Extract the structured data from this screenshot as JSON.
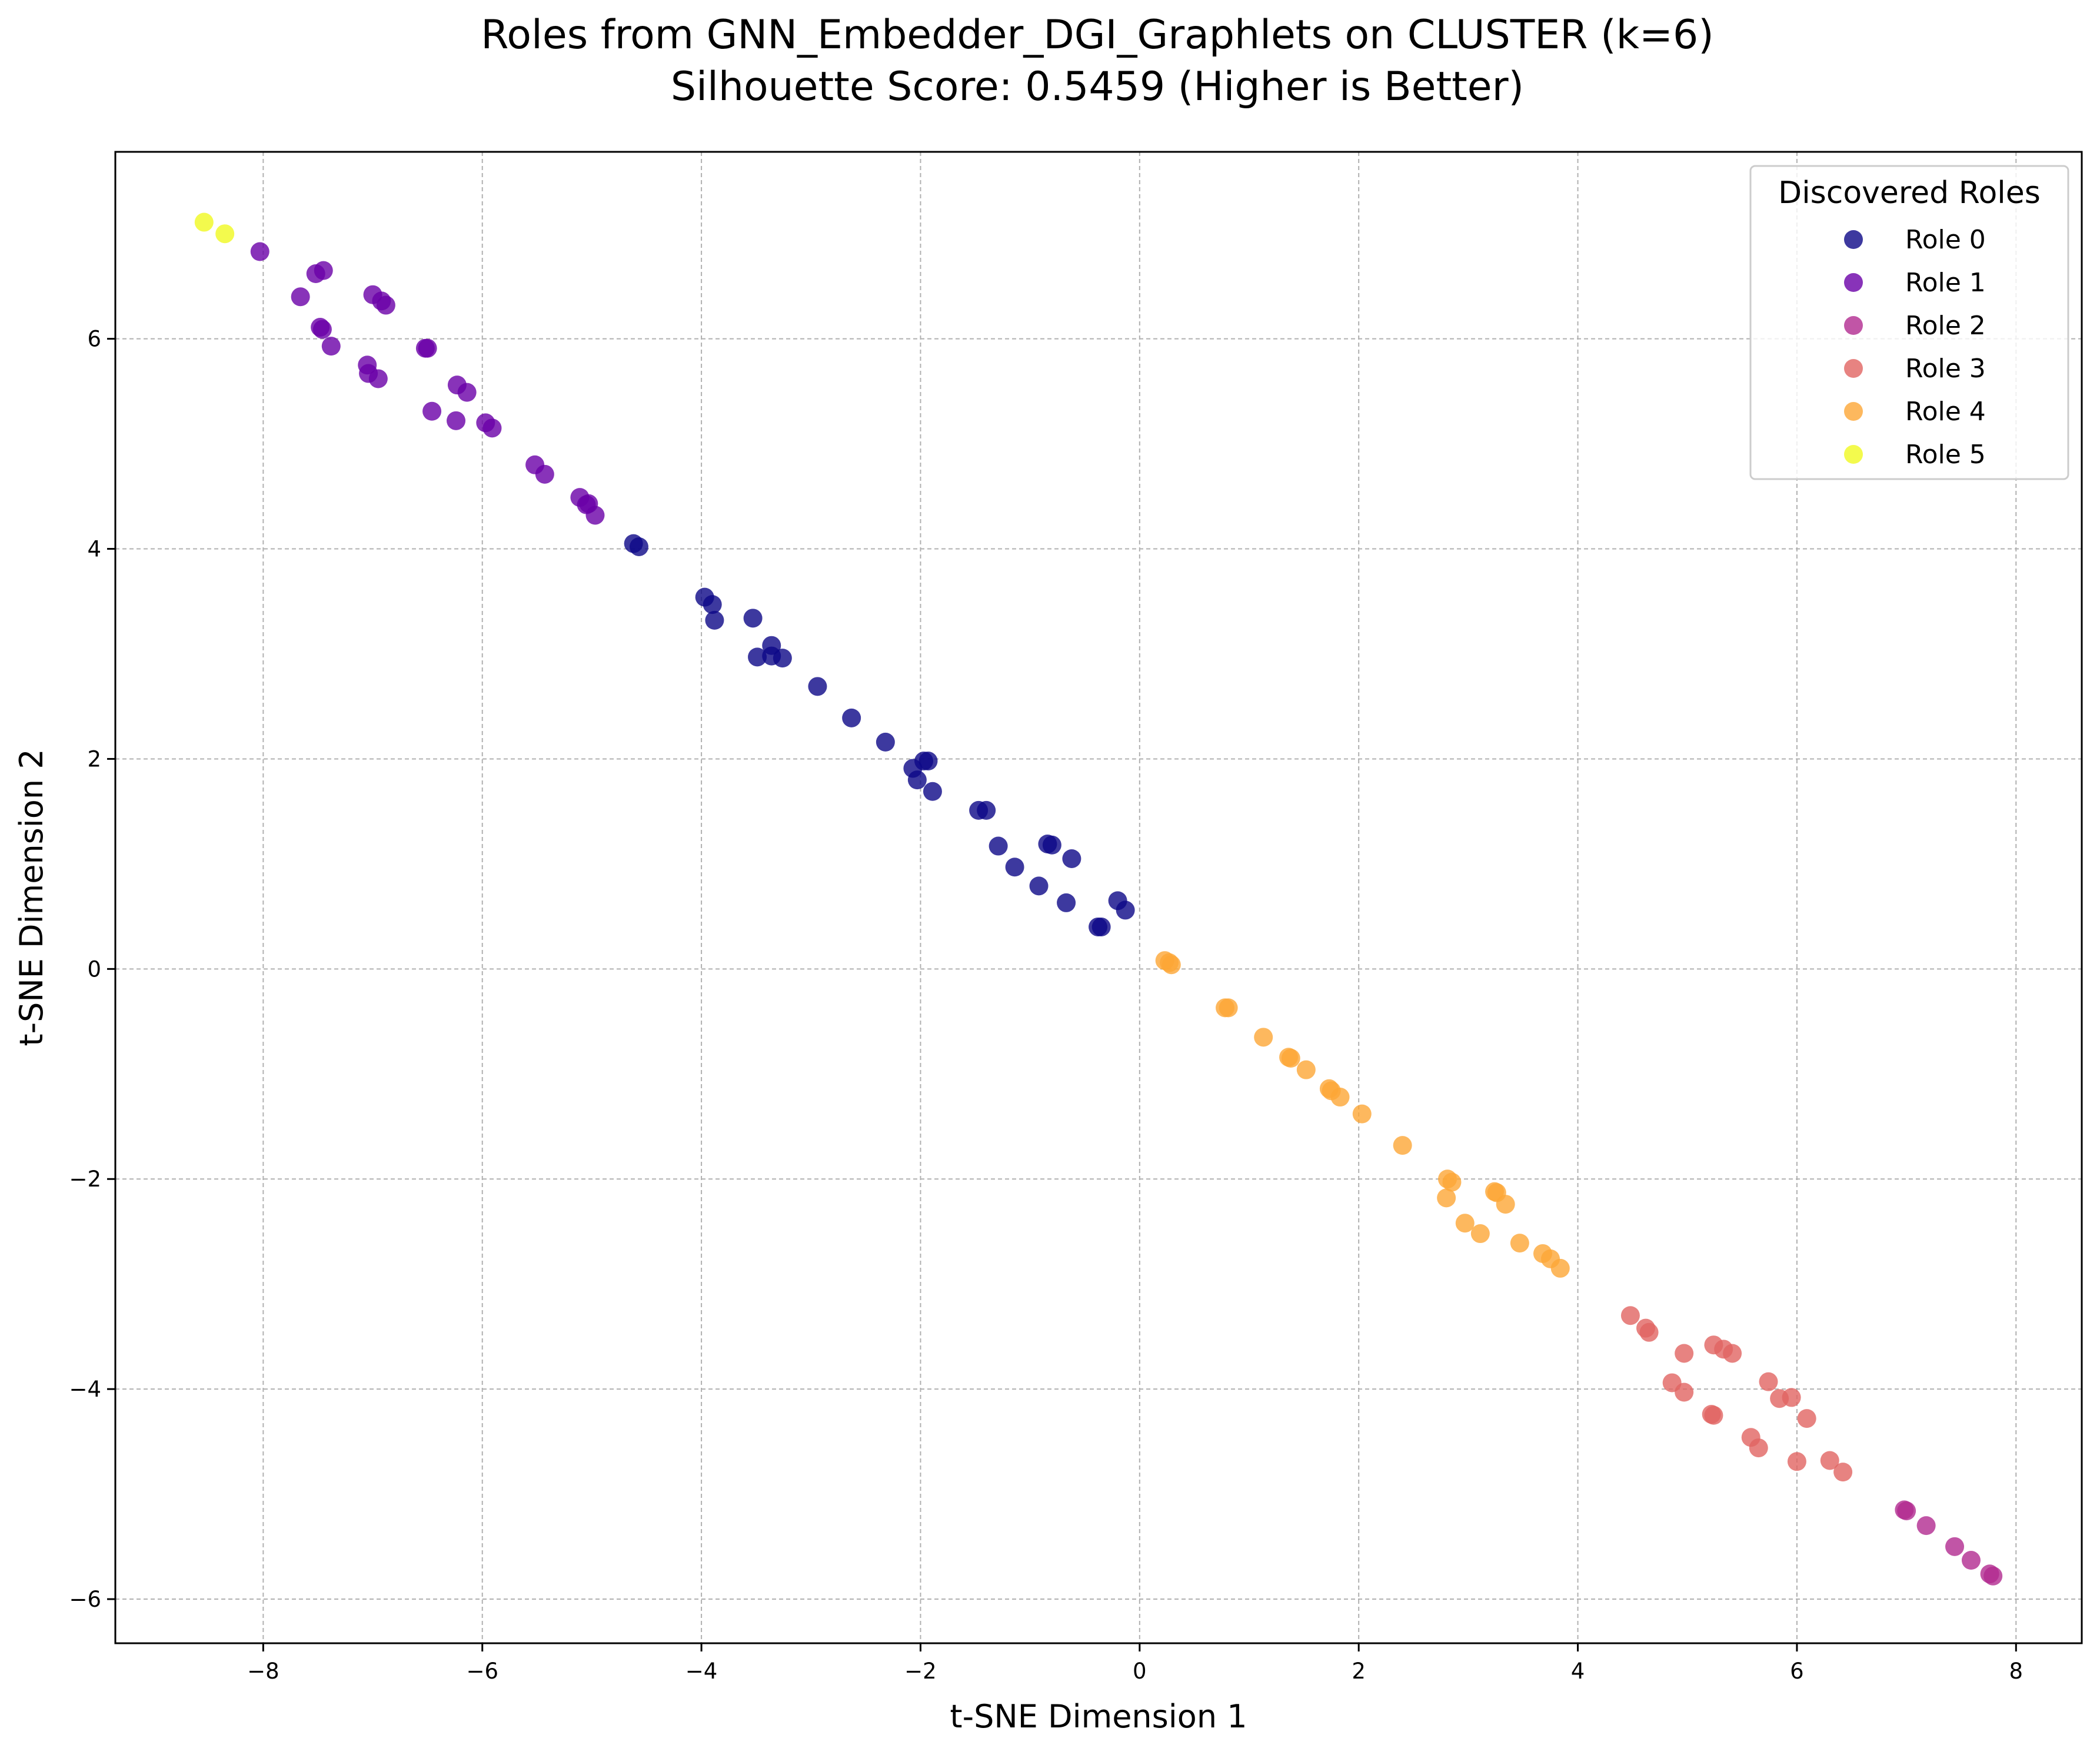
{
  "chart_data": {
    "type": "scatter",
    "title": "Roles from GNN_Embedder_DGI_Graphlets on CLUSTER (k=6)",
    "subtitle": "Silhouette Score: 0.5459 (Higher is Better)",
    "xlabel": "t-SNE Dimension 1",
    "ylabel": "t-SNE Dimension 2",
    "xlim": [
      -9.35,
      8.6
    ],
    "ylim": [
      -6.42,
      7.78
    ],
    "xticks": [
      -8,
      -6,
      -4,
      -2,
      0,
      2,
      4,
      6,
      8
    ],
    "yticks": [
      -6,
      -4,
      -2,
      0,
      2,
      4,
      6
    ],
    "xtick_labels": [
      "−8",
      "−6",
      "−4",
      "−2",
      "0",
      "2",
      "4",
      "6",
      "8"
    ],
    "ytick_labels": [
      "−6",
      "−4",
      "−2",
      "0",
      "2",
      "4",
      "6"
    ],
    "grid": true,
    "legend": {
      "title": "Discovered Roles",
      "placement": "top-right"
    },
    "series": [
      {
        "name": "Role 0",
        "color": "#0d0887",
        "points": [
          [
            -4.62,
            4.05
          ],
          [
            -4.57,
            4.02
          ],
          [
            -3.97,
            3.54
          ],
          [
            -3.9,
            3.47
          ],
          [
            -3.88,
            3.32
          ],
          [
            -3.53,
            3.34
          ],
          [
            -3.49,
            2.97
          ],
          [
            -3.36,
            3.08
          ],
          [
            -3.36,
            2.98
          ],
          [
            -3.26,
            2.96
          ],
          [
            -2.94,
            2.69
          ],
          [
            -2.63,
            2.39
          ],
          [
            -2.32,
            2.16
          ],
          [
            -2.07,
            1.91
          ],
          [
            -2.03,
            1.8
          ],
          [
            -1.97,
            1.98
          ],
          [
            -1.93,
            1.98
          ],
          [
            -1.89,
            1.69
          ],
          [
            -1.47,
            1.51
          ],
          [
            -1.4,
            1.51
          ],
          [
            -1.29,
            1.17
          ],
          [
            -1.14,
            0.97
          ],
          [
            -0.92,
            0.79
          ],
          [
            -0.84,
            1.19
          ],
          [
            -0.8,
            1.18
          ],
          [
            -0.67,
            0.63
          ],
          [
            -0.62,
            1.05
          ],
          [
            -0.38,
            0.4
          ],
          [
            -0.35,
            0.4
          ],
          [
            -0.2,
            0.65
          ],
          [
            -0.13,
            0.56
          ]
        ]
      },
      {
        "name": "Role 1",
        "color": "#6a00a8",
        "points": [
          [
            -8.03,
            6.83
          ],
          [
            -7.66,
            6.4
          ],
          [
            -7.52,
            6.62
          ],
          [
            -7.45,
            6.65
          ],
          [
            -7.48,
            6.11
          ],
          [
            -7.46,
            6.09
          ],
          [
            -7.38,
            5.93
          ],
          [
            -7.05,
            5.75
          ],
          [
            -7.04,
            5.67
          ],
          [
            -7.0,
            6.42
          ],
          [
            -6.92,
            6.36
          ],
          [
            -6.95,
            5.62
          ],
          [
            -6.88,
            6.32
          ],
          [
            -6.52,
            5.91
          ],
          [
            -6.5,
            5.91
          ],
          [
            -6.46,
            5.31
          ],
          [
            -6.23,
            5.56
          ],
          [
            -6.24,
            5.22
          ],
          [
            -6.14,
            5.49
          ],
          [
            -5.97,
            5.2
          ],
          [
            -5.91,
            5.15
          ],
          [
            -5.52,
            4.8
          ],
          [
            -5.43,
            4.71
          ],
          [
            -5.11,
            4.49
          ],
          [
            -5.05,
            4.42
          ],
          [
            -5.03,
            4.43
          ],
          [
            -4.97,
            4.32
          ]
        ]
      },
      {
        "name": "Role 2",
        "color": "#b12a90",
        "points": [
          [
            6.98,
            -5.15
          ],
          [
            7.0,
            -5.16
          ],
          [
            7.18,
            -5.3
          ],
          [
            7.44,
            -5.5
          ],
          [
            7.59,
            -5.63
          ],
          [
            7.76,
            -5.76
          ],
          [
            7.79,
            -5.78
          ]
        ]
      },
      {
        "name": "Role 3",
        "color": "#e16462",
        "points": [
          [
            4.48,
            -3.3
          ],
          [
            4.62,
            -3.42
          ],
          [
            4.65,
            -3.46
          ],
          [
            4.86,
            -3.94
          ],
          [
            4.97,
            -3.66
          ],
          [
            4.97,
            -4.03
          ],
          [
            5.22,
            -4.24
          ],
          [
            5.24,
            -4.25
          ],
          [
            5.24,
            -3.58
          ],
          [
            5.33,
            -3.62
          ],
          [
            5.41,
            -3.66
          ],
          [
            5.58,
            -4.46
          ],
          [
            5.65,
            -4.56
          ],
          [
            5.74,
            -3.93
          ],
          [
            5.84,
            -4.09
          ],
          [
            5.95,
            -4.08
          ],
          [
            6.0,
            -4.69
          ],
          [
            6.09,
            -4.28
          ],
          [
            6.3,
            -4.68
          ],
          [
            6.42,
            -4.79
          ]
        ]
      },
      {
        "name": "Role 4",
        "color": "#fca636",
        "points": [
          [
            0.23,
            0.08
          ],
          [
            0.27,
            0.06
          ],
          [
            0.29,
            0.04
          ],
          [
            0.78,
            -0.37
          ],
          [
            0.81,
            -0.37
          ],
          [
            1.13,
            -0.65
          ],
          [
            1.36,
            -0.84
          ],
          [
            1.38,
            -0.85
          ],
          [
            1.52,
            -0.96
          ],
          [
            1.73,
            -1.14
          ],
          [
            1.75,
            -1.16
          ],
          [
            1.83,
            -1.22
          ],
          [
            2.03,
            -1.38
          ],
          [
            2.4,
            -1.68
          ],
          [
            2.8,
            -2.18
          ],
          [
            2.81,
            -2.0
          ],
          [
            2.85,
            -2.03
          ],
          [
            2.97,
            -2.42
          ],
          [
            3.11,
            -2.52
          ],
          [
            3.24,
            -2.12
          ],
          [
            3.26,
            -2.13
          ],
          [
            3.34,
            -2.24
          ],
          [
            3.47,
            -2.61
          ],
          [
            3.68,
            -2.71
          ],
          [
            3.75,
            -2.76
          ],
          [
            3.84,
            -2.85
          ]
        ]
      },
      {
        "name": "Role 5",
        "color": "#f0f921",
        "points": [
          [
            -8.54,
            7.11
          ],
          [
            -8.35,
            7.0
          ]
        ]
      }
    ]
  }
}
